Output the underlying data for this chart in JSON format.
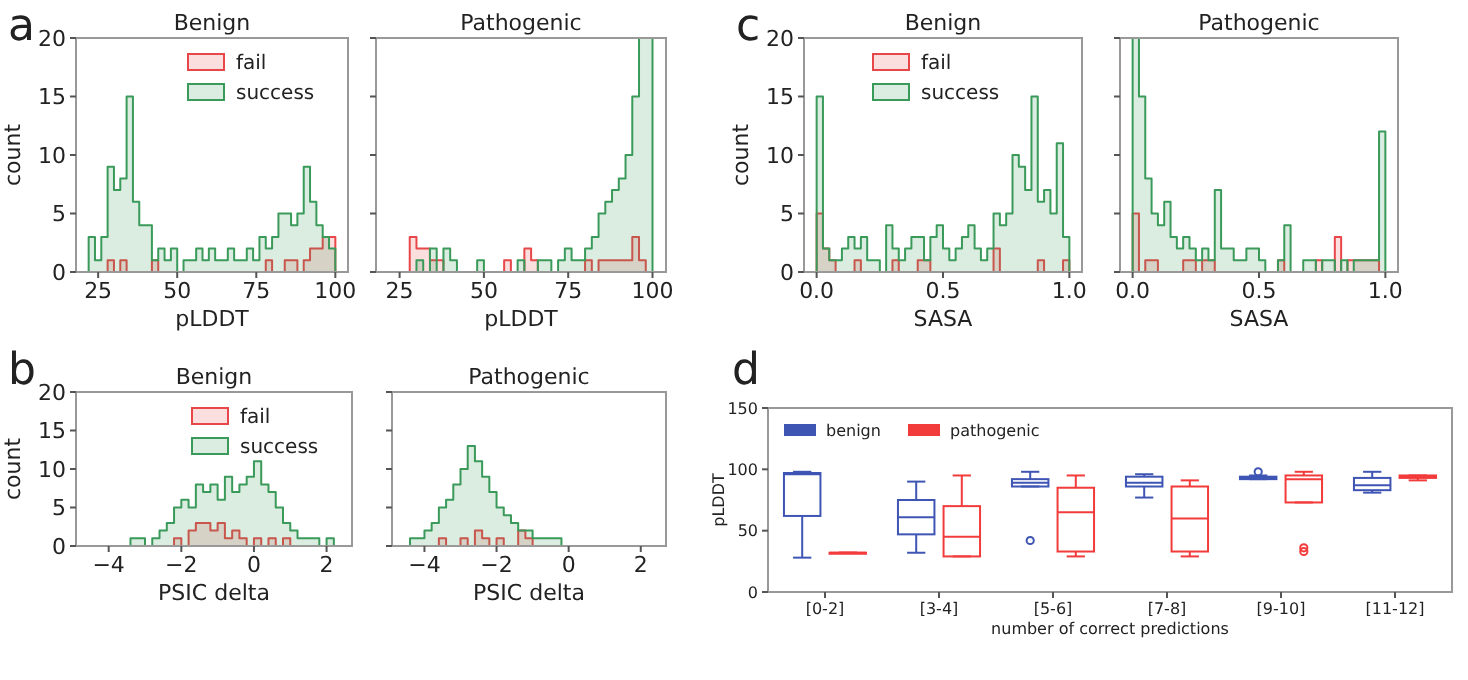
{
  "chart_data": [
    {
      "type": "histogram",
      "title": "Benign",
      "xlabel": "pLDDT",
      "ylabel": "count",
      "annotations": [
        "a"
      ],
      "legend": "top right",
      "xlim": [
        18,
        104
      ],
      "xticks": [
        25,
        50,
        75,
        100
      ],
      "ylim": [
        0,
        20
      ],
      "yticks": [
        0,
        5,
        10,
        15,
        20
      ],
      "bins": [
        22,
        24,
        26,
        28,
        30,
        32,
        34,
        36,
        38,
        40,
        42,
        44,
        46,
        48,
        50,
        52,
        54,
        56,
        58,
        60,
        62,
        64,
        66,
        68,
        70,
        72,
        74,
        76,
        78,
        80,
        82,
        84,
        86,
        88,
        90,
        92,
        94,
        96,
        98,
        100
      ],
      "series": [
        {
          "name": "fail",
          "color": "#e8474a",
          "values": [
            0,
            0,
            0,
            1,
            0,
            1,
            0,
            0,
            0,
            0,
            1,
            0,
            0,
            0,
            0,
            0,
            0,
            0,
            0,
            0,
            0,
            0,
            0,
            0,
            0,
            0,
            0,
            0,
            1,
            0,
            0,
            1,
            1,
            0,
            1,
            2,
            2,
            3,
            3
          ]
        },
        {
          "name": "success",
          "color": "#3a9a5a",
          "values": [
            3,
            1,
            3,
            9,
            7,
            8,
            15,
            6,
            4,
            4,
            1,
            2,
            1,
            2,
            0,
            1,
            1,
            2,
            1,
            2,
            1,
            1,
            2,
            1,
            1,
            2,
            1,
            3,
            2,
            3,
            5,
            5,
            4,
            5,
            9,
            6,
            4,
            3,
            2
          ]
        }
      ]
    },
    {
      "type": "histogram",
      "title": "Pathogenic",
      "xlabel": "pLDDT",
      "tick_labels": "x",
      "legend": false,
      "xlim": [
        18,
        104
      ],
      "xticks": [
        25,
        50,
        75,
        100
      ],
      "ylim": [
        0,
        20
      ],
      "yticks": [
        0,
        5,
        10,
        15,
        20
      ],
      "bins": [
        22,
        24,
        26,
        28,
        30,
        32,
        34,
        36,
        38,
        40,
        42,
        44,
        46,
        48,
        50,
        52,
        54,
        56,
        58,
        60,
        62,
        64,
        66,
        68,
        70,
        72,
        74,
        76,
        78,
        80,
        82,
        84,
        86,
        88,
        90,
        92,
        94,
        96,
        98,
        100
      ],
      "series": [
        {
          "color": "#e8474a",
          "values": [
            0,
            0,
            0,
            3,
            2,
            2,
            1,
            1,
            0,
            0,
            0,
            0,
            0,
            0,
            0,
            0,
            0,
            1,
            0,
            0,
            2,
            1,
            0,
            0,
            0,
            0,
            0,
            0,
            0,
            1,
            0,
            1,
            1,
            1,
            1,
            1,
            3,
            1,
            0
          ]
        },
        {
          "color": "#3a9a5a",
          "values": [
            0,
            0,
            0,
            0,
            1,
            0,
            2,
            0,
            2,
            1,
            0,
            0,
            0,
            1,
            0,
            0,
            0,
            0,
            0,
            1,
            0,
            0,
            1,
            1,
            0,
            1,
            2,
            1,
            1,
            2,
            3,
            5,
            6,
            7,
            8,
            10,
            15,
            20,
            20
          ]
        }
      ]
    },
    {
      "type": "histogram",
      "title": "Benign",
      "xlabel": "SASA",
      "ylabel": "count",
      "annotations": [
        "c"
      ],
      "legend": "top",
      "xlim": [
        -0.05,
        1.05
      ],
      "xticks": [
        {
          "value": 0,
          "label": "0.0"
        },
        0.5,
        {
          "value": 1,
          "label": "1.0"
        }
      ],
      "ylim": [
        0,
        20
      ],
      "yticks": [
        0,
        5,
        10,
        15,
        20
      ],
      "bins": [
        0,
        0.025,
        0.05,
        0.075,
        0.1,
        0.125,
        0.15,
        0.175,
        0.2,
        0.225,
        0.25,
        0.275,
        0.3,
        0.325,
        0.35,
        0.375,
        0.4,
        0.425,
        0.45,
        0.475,
        0.5,
        0.525,
        0.55,
        0.575,
        0.6,
        0.625,
        0.65,
        0.675,
        0.7,
        0.725,
        0.75,
        0.775,
        0.8,
        0.825,
        0.85,
        0.875,
        0.9,
        0.925,
        0.95,
        0.975,
        1
      ],
      "series": [
        {
          "name": "fail",
          "color": "#e8474a",
          "values": [
            5,
            2,
            1,
            0,
            0,
            0,
            1,
            0,
            0,
            0,
            0,
            0,
            1,
            0,
            0,
            0,
            1,
            1,
            0,
            0,
            0,
            0,
            0,
            0,
            0,
            0,
            0,
            0,
            2,
            0,
            0,
            0,
            0,
            0,
            0,
            1,
            0,
            0,
            0,
            1
          ]
        },
        {
          "name": "success",
          "color": "#3a9a5a",
          "values": [
            15,
            2,
            1,
            1,
            2,
            3,
            2,
            3,
            1,
            1,
            0,
            4,
            2,
            1,
            2,
            3,
            3,
            1,
            3,
            4,
            2,
            1,
            2,
            3,
            4,
            2,
            1,
            2,
            5,
            4,
            5,
            10,
            9,
            7,
            15,
            6,
            7,
            5,
            11,
            3
          ]
        }
      ]
    },
    {
      "type": "histogram",
      "title": "Pathogenic",
      "xlabel": "SASA",
      "tick_labels": "x",
      "legend": false,
      "xlim": [
        -0.05,
        1.05
      ],
      "xticks": [
        {
          "value": 0,
          "label": "0.0"
        },
        0.5,
        {
          "value": 1,
          "label": "1.0"
        }
      ],
      "ylim": [
        0,
        20
      ],
      "yticks": [
        0,
        5,
        10,
        15,
        20
      ],
      "bins": [
        0,
        0.025,
        0.05,
        0.075,
        0.1,
        0.125,
        0.15,
        0.175,
        0.2,
        0.225,
        0.25,
        0.275,
        0.3,
        0.325,
        0.35,
        0.375,
        0.4,
        0.425,
        0.45,
        0.475,
        0.5,
        0.525,
        0.55,
        0.575,
        0.6,
        0.625,
        0.65,
        0.675,
        0.7,
        0.725,
        0.75,
        0.775,
        0.8,
        0.825,
        0.85,
        0.875,
        0.9,
        0.925,
        0.95,
        0.975,
        1
      ],
      "series": [
        {
          "color": "#e8474a",
          "values": [
            5,
            0,
            1,
            1,
            0,
            0,
            0,
            0,
            1,
            1,
            0,
            1,
            1,
            0,
            0,
            0,
            0,
            0,
            0,
            0,
            0,
            0,
            0,
            1,
            0,
            0,
            0,
            0,
            0,
            1,
            0,
            0,
            3,
            0,
            1,
            1,
            1,
            1,
            1,
            0
          ]
        },
        {
          "color": "#3a9a5a",
          "values": [
            20,
            15,
            8,
            5,
            4,
            6,
            3,
            2,
            3,
            2,
            1,
            2,
            1,
            7,
            2,
            2,
            1,
            1,
            2,
            2,
            1,
            0,
            0,
            1,
            4,
            0,
            0,
            1,
            1,
            0,
            1,
            1,
            0,
            1,
            0,
            1,
            1,
            1,
            1,
            12
          ]
        }
      ]
    },
    {
      "type": "histogram",
      "title": "Benign",
      "xlabel": "PSIC delta",
      "ylabel": "count",
      "annotations": [
        "b"
      ],
      "legend": "top right",
      "xlim": [
        -4.9,
        2.7
      ],
      "xticks": [
        {
          "value": -4,
          "label": "−4"
        },
        {
          "value": -2,
          "label": "−2"
        },
        0,
        2
      ],
      "ylim": [
        0,
        20
      ],
      "yticks": [
        0,
        5,
        10,
        15,
        20
      ],
      "bins": [
        -4.4,
        -4.2,
        -4,
        -3.8,
        -3.6,
        -3.4,
        -3.2,
        -3,
        -2.8,
        -2.6,
        -2.4,
        -2.2,
        -2,
        -1.8,
        -1.6,
        -1.4,
        -1.2,
        -1,
        -0.8,
        -0.6,
        -0.4,
        -0.2,
        0,
        0.2,
        0.4,
        0.6,
        0.8,
        1,
        1.2,
        1.4,
        1.6,
        1.8,
        2,
        2.2,
        2.4
      ],
      "series": [
        {
          "name": "fail",
          "color": "#e8474a",
          "values": [
            0,
            0,
            0,
            0,
            0,
            0,
            0,
            0,
            0,
            0,
            0,
            1,
            0,
            2,
            3,
            3,
            2,
            3,
            1,
            2,
            1,
            0,
            1,
            0,
            1,
            0,
            1,
            0,
            0,
            0,
            0,
            0,
            0,
            0
          ]
        },
        {
          "name": "success",
          "color": "#3a9a5a",
          "values": [
            0,
            0,
            0,
            0,
            0,
            1,
            1,
            0,
            1,
            2,
            3,
            5,
            6,
            5,
            8,
            7,
            8,
            6,
            9,
            7,
            8,
            9,
            11,
            8,
            7,
            5,
            3,
            2,
            1,
            1,
            1,
            0,
            1,
            0
          ]
        }
      ]
    },
    {
      "type": "histogram",
      "title": "Pathogenic",
      "xlabel": "PSIC delta",
      "tick_labels": "x",
      "legend": false,
      "xlim": [
        -4.9,
        2.7
      ],
      "xticks": [
        {
          "value": -4,
          "label": "−4"
        },
        {
          "value": -2,
          "label": "−2"
        },
        0,
        2
      ],
      "ylim": [
        0,
        20
      ],
      "yticks": [
        0,
        5,
        10,
        15,
        20
      ],
      "bins": [
        -4.4,
        -4.2,
        -4,
        -3.8,
        -3.6,
        -3.4,
        -3.2,
        -3,
        -2.8,
        -2.6,
        -2.4,
        -2.2,
        -2,
        -1.8,
        -1.6,
        -1.4,
        -1.2,
        -1,
        -0.8,
        -0.6,
        -0.4,
        -0.2,
        0,
        0.2,
        0.4,
        0.6,
        0.8,
        1,
        1.2,
        1.4,
        1.6,
        1.8,
        2,
        2.2,
        2.4
      ],
      "series": [
        {
          "color": "#e8474a",
          "values": [
            0,
            0,
            0,
            0,
            1,
            0,
            0,
            1,
            0,
            2,
            1,
            0,
            1,
            0,
            0,
            2,
            1,
            0,
            0,
            0,
            0,
            0,
            0,
            0,
            0,
            0,
            0,
            0,
            0,
            0,
            0,
            0,
            0,
            0
          ]
        },
        {
          "color": "#3a9a5a",
          "values": [
            1,
            1,
            2,
            3,
            5,
            6,
            8,
            10,
            13,
            11,
            9,
            7,
            5,
            4,
            3,
            2,
            2,
            1,
            1,
            1,
            1,
            0,
            0,
            0,
            0,
            0,
            0,
            0,
            0,
            0,
            0,
            0,
            0,
            0
          ]
        }
      ]
    },
    {
      "type": "box",
      "xlabel": "number of correct predictions",
      "ylabel": "pLDDT",
      "annotations": [
        "d"
      ],
      "legend": "top left",
      "ylim": [
        0,
        150
      ],
      "yticks": [
        0,
        50,
        100,
        150
      ],
      "categories": [
        "[0-2]",
        "[3-4]",
        "[5-6]",
        "[7-8]",
        "[9-10]",
        "[11-12]"
      ],
      "series": [
        {
          "name": "benign",
          "color": "#3f55b4",
          "boxes": [
            {
              "low": 28,
              "q1": 62,
              "median": 96,
              "q3": 97,
              "high": 98
            },
            {
              "low": 32,
              "q1": 47,
              "median": 61,
              "q3": 75,
              "high": 90
            },
            {
              "low": 86,
              "q1": 86,
              "median": 89,
              "q3": 92,
              "high": 98,
              "outliers": [
                42
              ]
            },
            {
              "low": 77,
              "q1": 86,
              "median": 89,
              "q3": 94,
              "high": 96
            },
            {
              "low": 92,
              "q1": 92,
              "median": 93,
              "q3": 94,
              "high": 95,
              "outliers": [
                98
              ]
            },
            {
              "low": 81,
              "q1": 83,
              "median": 87,
              "q3": 93,
              "high": 98
            }
          ]
        },
        {
          "name": "pathogenic",
          "color": "#f23b3b",
          "boxes": [
            {
              "low": 32,
              "q1": 32,
              "median": 32,
              "q3": 32,
              "high": 32
            },
            {
              "low": 29,
              "q1": 29,
              "median": 45,
              "q3": 70,
              "high": 95
            },
            {
              "low": 29,
              "q1": 33,
              "median": 65,
              "q3": 85,
              "high": 95
            },
            {
              "low": 29,
              "q1": 33,
              "median": 60,
              "q3": 86,
              "high": 91
            },
            {
              "low": 73,
              "q1": 73,
              "median": 92,
              "q3": 95,
              "high": 98,
              "outliers": [
                33,
                36
              ]
            },
            {
              "low": 91,
              "q1": 93,
              "median": 94,
              "q3": 95,
              "high": 95
            }
          ]
        }
      ]
    }
  ]
}
